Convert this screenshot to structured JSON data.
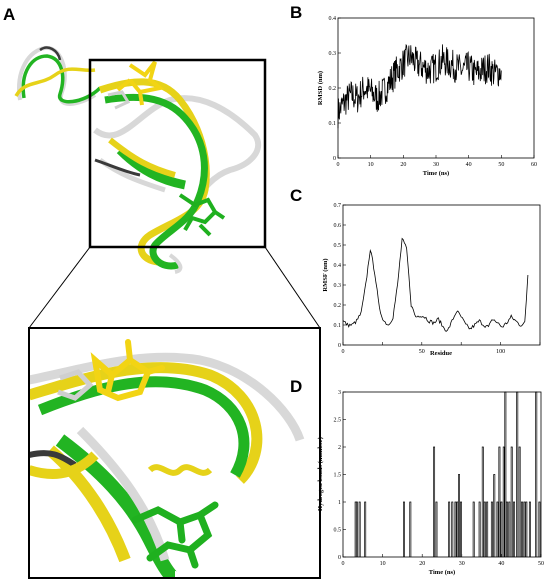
{
  "panels": {
    "a": "A",
    "b": "B",
    "c": "C",
    "d": "D"
  },
  "colors": {
    "ribbon_green": "#22b422",
    "ribbon_yellow": "#e6d219",
    "ribbon_white": "#d8d8d8",
    "ribbon_dark": "#3a3a3a",
    "ligand_yellow": "#f2d414",
    "ligand_green": "#1fb01f",
    "plot_line": "#000000"
  },
  "chart_data": [
    {
      "panel": "B",
      "type": "line",
      "xlabel": "Time (ns)",
      "ylabel": "RMSD (nm)",
      "xlim": [
        0,
        60
      ],
      "ylim": [
        0,
        0.4
      ],
      "xticks": [
        "0",
        "10",
        "20",
        "30",
        "40",
        "50",
        "60"
      ],
      "yticks": [
        "0",
        "0.1",
        "0.2",
        "0.3",
        "0.4"
      ],
      "grid": false,
      "series": [
        {
          "x": [
            0,
            2,
            4,
            6,
            8,
            10,
            12,
            14,
            16,
            18,
            20,
            22,
            24,
            26,
            28,
            30,
            32,
            34,
            36,
            38,
            40,
            42,
            44,
            46,
            48,
            50
          ],
          "values": [
            0.13,
            0.16,
            0.18,
            0.17,
            0.2,
            0.19,
            0.17,
            0.19,
            0.22,
            0.25,
            0.27,
            0.29,
            0.27,
            0.26,
            0.25,
            0.26,
            0.28,
            0.27,
            0.26,
            0.25,
            0.26,
            0.24,
            0.25,
            0.26,
            0.24,
            0.25
          ],
          "noise": 0.045
        }
      ]
    },
    {
      "panel": "C",
      "type": "line",
      "xlabel": "Residue",
      "ylabel": "RMSF (nm)",
      "xlim": [
        0,
        130
      ],
      "ylim": [
        0,
        0.7
      ],
      "xticks": [
        "0",
        "",
        "50",
        "",
        "100",
        ""
      ],
      "yticks": [
        "0",
        "0.1",
        "0.2",
        "0.3",
        "0.4",
        "0.5",
        "0.6",
        "0.7"
      ],
      "grid": false,
      "series": [
        {
          "x": [
            0,
            3,
            6,
            9,
            12,
            15,
            18,
            21,
            24,
            27,
            30,
            33,
            36,
            39,
            42,
            45,
            48,
            51,
            54,
            57,
            60,
            63,
            66,
            69,
            72,
            75,
            78,
            81,
            84,
            87,
            90,
            93,
            96,
            99,
            102,
            105,
            108,
            111,
            114,
            117,
            120,
            122
          ],
          "values": [
            0.12,
            0.1,
            0.1,
            0.12,
            0.16,
            0.3,
            0.48,
            0.36,
            0.18,
            0.12,
            0.1,
            0.14,
            0.3,
            0.53,
            0.48,
            0.2,
            0.14,
            0.15,
            0.14,
            0.12,
            0.11,
            0.13,
            0.09,
            0.07,
            0.12,
            0.17,
            0.14,
            0.1,
            0.08,
            0.1,
            0.12,
            0.1,
            0.09,
            0.13,
            0.11,
            0.09,
            0.11,
            0.14,
            0.12,
            0.1,
            0.11,
            0.35
          ],
          "noise": 0.01
        }
      ]
    },
    {
      "panel": "D",
      "type": "bar",
      "xlabel": "Time (ns)",
      "ylabel": "Hydrogen bonds (number)",
      "xlim": [
        0,
        50
      ],
      "ylim": [
        0,
        3
      ],
      "xticks": [
        "0",
        "10",
        "20",
        "30",
        "40",
        "50"
      ],
      "yticks": [
        "0",
        "0.5",
        "1",
        "1.5",
        "2",
        "2.5",
        "3"
      ],
      "grid": false,
      "events": [
        {
          "x": 3.2,
          "v": 1
        },
        {
          "x": 3.5,
          "v": 1
        },
        {
          "x": 4.2,
          "v": 1
        },
        {
          "x": 5.6,
          "v": 1
        },
        {
          "x": 15.4,
          "v": 1
        },
        {
          "x": 17.0,
          "v": 1
        },
        {
          "x": 23.0,
          "v": 2
        },
        {
          "x": 23.6,
          "v": 1
        },
        {
          "x": 26.8,
          "v": 1
        },
        {
          "x": 27.6,
          "v": 1
        },
        {
          "x": 28.4,
          "v": 1
        },
        {
          "x": 28.9,
          "v": 1
        },
        {
          "x": 29.3,
          "v": 1.5
        },
        {
          "x": 29.8,
          "v": 1
        },
        {
          "x": 33.0,
          "v": 1
        },
        {
          "x": 34.5,
          "v": 1
        },
        {
          "x": 35.3,
          "v": 2
        },
        {
          "x": 35.8,
          "v": 1
        },
        {
          "x": 36.4,
          "v": 1
        },
        {
          "x": 37.6,
          "v": 1
        },
        {
          "x": 38.2,
          "v": 1.5
        },
        {
          "x": 39.0,
          "v": 1
        },
        {
          "x": 39.5,
          "v": 2
        },
        {
          "x": 40.0,
          "v": 1
        },
        {
          "x": 40.6,
          "v": 2
        },
        {
          "x": 41.0,
          "v": 3
        },
        {
          "x": 41.4,
          "v": 1
        },
        {
          "x": 42.0,
          "v": 1
        },
        {
          "x": 42.6,
          "v": 2
        },
        {
          "x": 43.2,
          "v": 1
        },
        {
          "x": 44.0,
          "v": 3
        },
        {
          "x": 44.6,
          "v": 2
        },
        {
          "x": 45.2,
          "v": 1
        },
        {
          "x": 45.8,
          "v": 1
        },
        {
          "x": 46.3,
          "v": 1
        },
        {
          "x": 47.2,
          "v": 1
        },
        {
          "x": 48.8,
          "v": 3
        },
        {
          "x": 49.6,
          "v": 1
        }
      ]
    }
  ]
}
